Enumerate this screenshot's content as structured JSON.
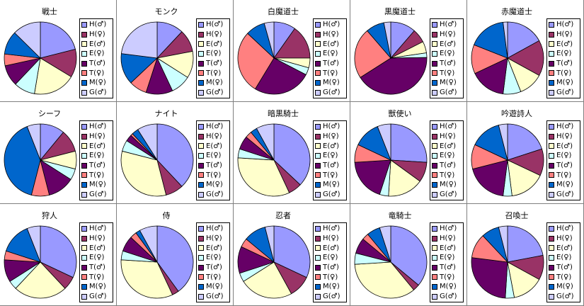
{
  "legend_colors": [
    "#9999ff",
    "#993366",
    "#ffffcc",
    "#ccffff",
    "#660066",
    "#ff8080",
    "#0066cc",
    "#ccccff"
  ],
  "chart_data": [
    {
      "type": "pie",
      "title": "戦士",
      "categories": [
        "H(♂)",
        "H(♀)",
        "E(♂)",
        "E(♀)",
        "T(♂)",
        "T(♀)",
        "M(♀)",
        "G(♂)"
      ],
      "values": [
        20,
        12,
        18,
        9,
        9,
        5,
        10,
        12
      ]
    },
    {
      "type": "pie",
      "title": "モンク",
      "categories": [
        "H(♂)",
        "H(♀)",
        "E(♂)",
        "E(♀)",
        "T(♂)",
        "T(♀)",
        "M(♀)",
        "G(♂)"
      ],
      "values": [
        12,
        10,
        12,
        9,
        12,
        8,
        14,
        23
      ]
    },
    {
      "type": "pie",
      "title": "白魔道士",
      "categories": [
        "H(♂)",
        "H(♀)",
        "E(♂)",
        "E(♀)",
        "T(♂)",
        "T(♀)",
        "M(♀)",
        "G(♂)"
      ],
      "values": [
        9,
        14,
        4,
        3,
        24,
        26,
        8,
        4
      ]
    },
    {
      "type": "pie",
      "title": "黒魔道士",
      "categories": [
        "H(♂)",
        "H(♀)",
        "E(♂)",
        "E(♀)",
        "T(♂)",
        "T(♀)",
        "M(♀)",
        "G(♂)"
      ],
      "values": [
        11,
        6,
        5,
        2,
        40,
        22,
        8,
        3
      ]
    },
    {
      "type": "pie",
      "title": "赤魔道士",
      "categories": [
        "H(♂)",
        "H(♀)",
        "E(♂)",
        "E(♀)",
        "T(♂)",
        "T(♀)",
        "M(♀)",
        "G(♂)"
      ],
      "values": [
        17,
        16,
        11,
        8,
        16,
        13,
        17,
        2
      ]
    },
    {
      "type": "pie",
      "title": "シーフ",
      "categories": [
        "H(♂)",
        "H(♀)",
        "E(♂)",
        "E(♀)",
        "T(♂)",
        "T(♀)",
        "M(♀)",
        "G(♂)"
      ],
      "values": [
        11,
        10,
        8,
        5,
        12,
        8,
        40,
        6
      ]
    },
    {
      "type": "pie",
      "title": "ナイト",
      "categories": [
        "H(♂)",
        "H(♀)",
        "E(♂)",
        "E(♀)",
        "T(♂)",
        "T(♀)",
        "M(♀)",
        "G(♂)"
      ],
      "values": [
        38,
        8,
        33,
        5,
        3,
        1,
        3,
        9
      ]
    },
    {
      "type": "pie",
      "title": "暗黒騎士",
      "categories": [
        "H(♂)",
        "H(♀)",
        "E(♂)",
        "E(♀)",
        "T(♂)",
        "T(♀)",
        "M(♀)",
        "G(♂)"
      ],
      "values": [
        37,
        6,
        33,
        4,
        6,
        3,
        3,
        8
      ]
    },
    {
      "type": "pie",
      "title": "獣使い",
      "categories": [
        "H(♂)",
        "H(♀)",
        "E(♂)",
        "E(♀)",
        "T(♂)",
        "T(♀)",
        "M(♀)",
        "G(♂)"
      ],
      "values": [
        26,
        9,
        16,
        4,
        19,
        8,
        12,
        6
      ]
    },
    {
      "type": "pie",
      "title": "吟遊詩人",
      "categories": [
        "H(♂)",
        "H(♀)",
        "E(♂)",
        "E(♀)",
        "T(♂)",
        "T(♀)",
        "M(♀)",
        "G(♂)"
      ],
      "values": [
        20,
        12,
        16,
        4,
        19,
        11,
        14,
        4
      ]
    },
    {
      "type": "pie",
      "title": "狩人",
      "categories": [
        "H(♂)",
        "H(♀)",
        "E(♂)",
        "E(♀)",
        "T(♂)",
        "T(♀)",
        "M(♀)",
        "G(♂)"
      ],
      "values": [
        32,
        6,
        24,
        4,
        10,
        4,
        14,
        6
      ]
    },
    {
      "type": "pie",
      "title": "侍",
      "categories": [
        "H(♂)",
        "H(♀)",
        "E(♂)",
        "E(♀)",
        "T(♂)",
        "T(♀)",
        "M(♀)",
        "G(♂)"
      ],
      "values": [
        40,
        3,
        33,
        4,
        7,
        3,
        2,
        8
      ]
    },
    {
      "type": "pie",
      "title": "忍者",
      "categories": [
        "H(♂)",
        "H(♀)",
        "E(♂)",
        "E(♀)",
        "T(♂)",
        "T(♀)",
        "M(♀)",
        "G(♂)"
      ],
      "values": [
        32,
        10,
        24,
        4,
        12,
        4,
        10,
        4
      ]
    },
    {
      "type": "pie",
      "title": "竜騎士",
      "categories": [
        "H(♂)",
        "H(♀)",
        "E(♂)",
        "E(♀)",
        "T(♂)",
        "T(♀)",
        "M(♀)",
        "G(♂)"
      ],
      "values": [
        36,
        3,
        35,
        5,
        7,
        3,
        6,
        5
      ]
    },
    {
      "type": "pie",
      "title": "召喚士",
      "categories": [
        "H(♂)",
        "H(♀)",
        "E(♂)",
        "E(♀)",
        "T(♂)",
        "T(♀)",
        "M(♀)",
        "G(♂)"
      ],
      "values": [
        22,
        11,
        14,
        4,
        26,
        11,
        8,
        4
      ]
    }
  ]
}
